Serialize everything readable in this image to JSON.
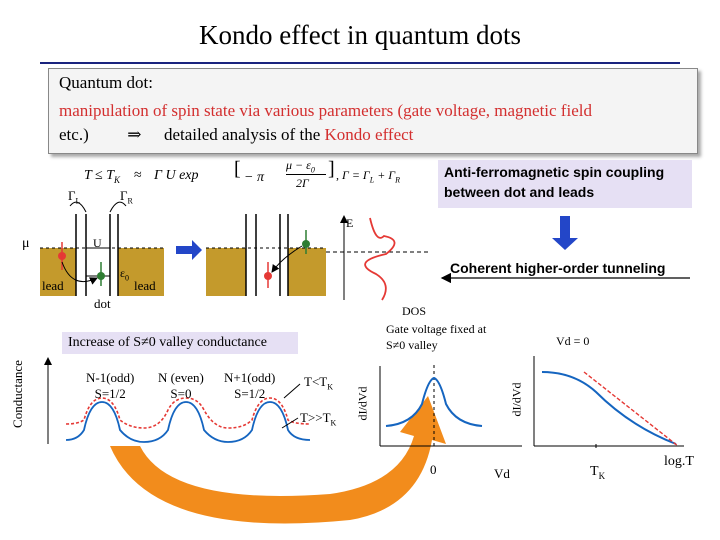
{
  "title": "Kondo effect in quantum dots",
  "intro": {
    "line1": "Quantum dot:",
    "line2": "manipulation of spin state via various parameters (gate voltage, magnetic field",
    "line3_a": "etc.)",
    "line3_arrow": "⇒",
    "line3_b": "detailed analysis of the ",
    "line3_c": "Kondo effect"
  },
  "formula": {
    "lhs": "T ≤ T",
    "lhs_sub": "K",
    "approx": "≈",
    "mid": "Γ U exp",
    "frac_num": "μ − ε",
    "frac_num_sub": "0",
    "frac_den": "2Γ",
    "minus_pi": "− π",
    "tail": ", Γ = Γ",
    "tail_sub1": "L",
    "tail_plus": " + Γ",
    "tail_sub2": "R"
  },
  "coupling_note": {
    "line1": "Anti-ferromagnetic spin coupling",
    "line2": "between dot and leads"
  },
  "schematic": {
    "gamma_l": "Γ",
    "gamma_l_sub": "L",
    "gamma_r": "Γ",
    "gamma_r_sub": "R",
    "mu": "μ",
    "u": "U",
    "eps": "ε",
    "eps_sub": "0",
    "lead_left": "lead",
    "lead_right": "lead",
    "dot": "dot",
    "energy": "E",
    "dos": "DOS",
    "coherent": "Coherent higher-order tunneling"
  },
  "conductance_plot": {
    "banner": "Increase of S≠0 valley conductance",
    "ylabel": "Conductance",
    "valleys": [
      {
        "line1": "N-1(odd)",
        "line2": "S=1/2"
      },
      {
        "line1": "N (even)",
        "line2": "S=0"
      },
      {
        "line1": "N+1(odd)",
        "line2": "S=1/2"
      }
    ],
    "t_low": "T<T",
    "t_low_sub": "K",
    "t_high": "T>>T",
    "t_high_sub": "K"
  },
  "didv_plot": {
    "note_line1": "Gate voltage fixed at",
    "note_line2": "S≠0 valley",
    "ylabel": "dI/dVd",
    "x0": "0",
    "xlabel": "Vd"
  },
  "temp_plot": {
    "note": "Vd = 0",
    "ylabel": "dI/dVd",
    "tk": "T",
    "tk_sub": "K",
    "xlabel": "log.T"
  },
  "colors": {
    "accent_red": "#d32f2f",
    "lead_gold": "#c49a2c",
    "curve_blue": "#1565c0",
    "curve_red": "#e53935",
    "arrow_orange": "#f28c1c",
    "arrow_blue": "#2346c8",
    "box_lavender": "#e6e0f4"
  }
}
